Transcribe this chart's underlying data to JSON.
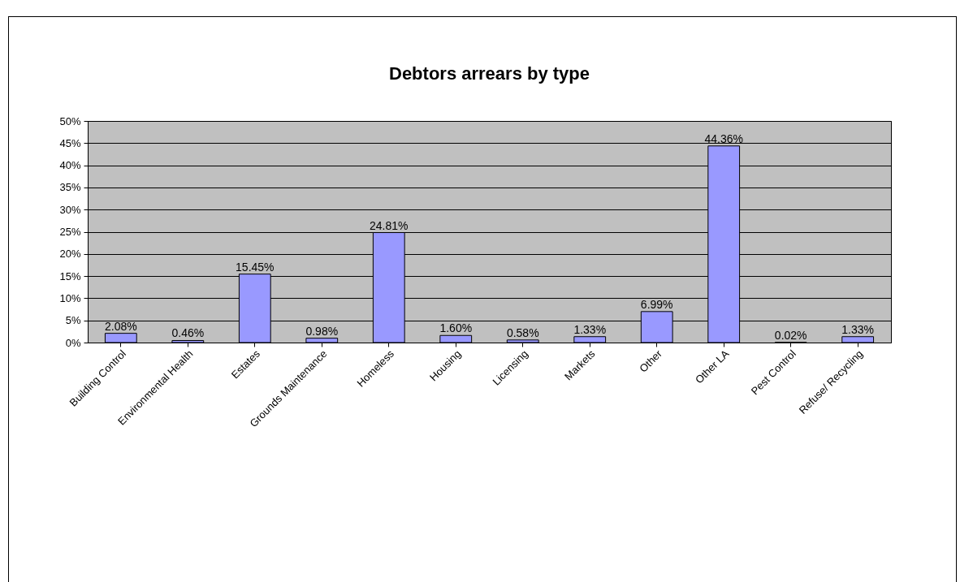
{
  "chart_data": {
    "type": "bar",
    "title": "Debtors arrears by type",
    "categories": [
      "Building Control",
      "Environmental Health",
      "Estates",
      "Grounds Maintenance",
      "Homeless",
      "Housing",
      "Licensing",
      "Markets",
      "Other",
      "Other LA",
      "Pest Control",
      "Refuse/ Recycling"
    ],
    "values": [
      2.08,
      0.46,
      15.45,
      0.98,
      24.81,
      1.6,
      0.58,
      1.33,
      6.99,
      44.36,
      0.02,
      1.33
    ],
    "value_labels": [
      "2.08%",
      "0.46%",
      "15.45%",
      "0.98%",
      "24.81%",
      "1.60%",
      "0.58%",
      "1.33%",
      "6.99%",
      "44.36%",
      "0.02%",
      "1.33%"
    ],
    "color": "#9999ff",
    "ylim": [
      0,
      50
    ],
    "yticks": [
      {
        "value": 0,
        "label": "0%"
      },
      {
        "value": 5,
        "label": "5%"
      },
      {
        "value": 10,
        "label": "10%"
      },
      {
        "value": 15,
        "label": "15%"
      },
      {
        "value": 20,
        "label": "20%"
      },
      {
        "value": 25,
        "label": "25%"
      },
      {
        "value": 30,
        "label": "30%"
      },
      {
        "value": 35,
        "label": "35%"
      },
      {
        "value": 40,
        "label": "40%"
      },
      {
        "value": 45,
        "label": "45%"
      },
      {
        "value": 50,
        "label": "50%"
      }
    ],
    "grid": "y"
  }
}
